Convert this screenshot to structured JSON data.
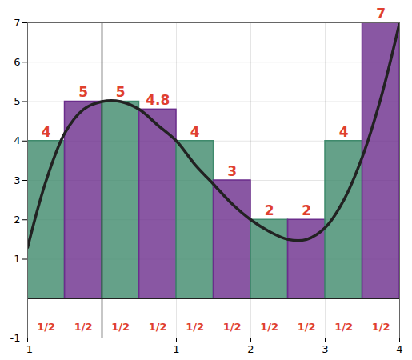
{
  "chart_data": {
    "type": "bar",
    "bins": [
      -1,
      -0.5,
      0,
      0.5,
      1,
      1.5,
      2,
      2.5,
      3,
      3.5,
      4
    ],
    "values": [
      4,
      5,
      5,
      4.8,
      4,
      3,
      2,
      2,
      4,
      7
    ],
    "colors": [
      "#3f8a6c",
      "#6b2d8c",
      "#3f8a6c",
      "#6b2d8c",
      "#3f8a6c",
      "#6b2d8c",
      "#3f8a6c",
      "#6b2d8c",
      "#3f8a6c",
      "#6b2d8c"
    ],
    "data_labels": true,
    "width_labels": [
      "1/2",
      "1/2",
      "1/2",
      "1/2",
      "1/2",
      "1/2",
      "1/2",
      "1/2",
      "1/2",
      "1/2"
    ],
    "curve": {
      "type": "line",
      "color": "#222222",
      "x": [
        -1,
        -0.75,
        -0.5,
        -0.25,
        0,
        0.25,
        0.5,
        0.75,
        1,
        1.25,
        1.5,
        1.75,
        2,
        2.25,
        2.5,
        2.75,
        3,
        3.25,
        3.5,
        3.75,
        4
      ],
      "values": [
        1.3,
        3.0,
        4.2,
        4.8,
        5,
        5,
        4.8,
        4.4,
        4,
        3.4,
        2.9,
        2.4,
        2.0,
        1.7,
        1.5,
        1.5,
        1.8,
        2.5,
        3.6,
        5.1,
        7
      ]
    },
    "xlim": [
      -1,
      4
    ],
    "xticks": [
      -1,
      1,
      2,
      3,
      4
    ],
    "ylim": [
      -1,
      7
    ],
    "yticks": [
      -1,
      1,
      2,
      3,
      4,
      5,
      6,
      7
    ],
    "grid": true
  }
}
